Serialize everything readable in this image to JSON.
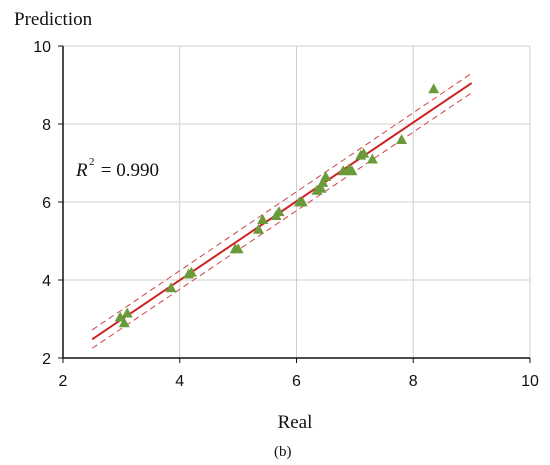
{
  "chart_data": {
    "type": "scatter",
    "xlabel": "Real",
    "ylabel": "Prediction",
    "caption": "(b)",
    "xlim": [
      2,
      10
    ],
    "ylim": [
      2,
      10
    ],
    "xticks": [
      2,
      4,
      6,
      8,
      10
    ],
    "yticks": [
      2,
      4,
      6,
      8,
      10
    ],
    "grid": true,
    "annotation": {
      "r2_label": "R",
      "r2_exponent": "2",
      "r2_value": " = 0.990"
    },
    "points": [
      {
        "x": 2.98,
        "y": 3.05
      },
      {
        "x": 3.05,
        "y": 2.9
      },
      {
        "x": 3.1,
        "y": 3.15
      },
      {
        "x": 3.85,
        "y": 3.8
      },
      {
        "x": 4.15,
        "y": 4.15
      },
      {
        "x": 4.2,
        "y": 4.2
      },
      {
        "x": 4.95,
        "y": 4.8
      },
      {
        "x": 5.0,
        "y": 4.8
      },
      {
        "x": 5.35,
        "y": 5.3
      },
      {
        "x": 5.42,
        "y": 5.55
      },
      {
        "x": 5.65,
        "y": 5.65
      },
      {
        "x": 5.7,
        "y": 5.75
      },
      {
        "x": 6.05,
        "y": 6.0
      },
      {
        "x": 6.1,
        "y": 6.0
      },
      {
        "x": 6.35,
        "y": 6.3
      },
      {
        "x": 6.42,
        "y": 6.35
      },
      {
        "x": 6.45,
        "y": 6.5
      },
      {
        "x": 6.5,
        "y": 6.65
      },
      {
        "x": 6.8,
        "y": 6.8
      },
      {
        "x": 6.9,
        "y": 6.85
      },
      {
        "x": 6.95,
        "y": 6.8
      },
      {
        "x": 7.1,
        "y": 7.2
      },
      {
        "x": 7.15,
        "y": 7.25
      },
      {
        "x": 7.3,
        "y": 7.1
      },
      {
        "x": 7.8,
        "y": 7.6
      },
      {
        "x": 8.35,
        "y": 8.9
      }
    ],
    "fit_line": {
      "x1": 2.5,
      "y1": 2.48,
      "x2": 9.0,
      "y2": 9.05
    },
    "confidence_upper": {
      "x1": 2.5,
      "y1": 2.72,
      "x2": 9.0,
      "y2": 9.3
    },
    "confidence_lower": {
      "x1": 2.5,
      "y1": 2.25,
      "x2": 9.0,
      "y2": 8.8
    },
    "colors": {
      "points": "#6a9a3a",
      "fit": "#cc2222",
      "confidence": "#cc4444",
      "grid": "#cfcfcf",
      "axis": "#111111"
    }
  }
}
